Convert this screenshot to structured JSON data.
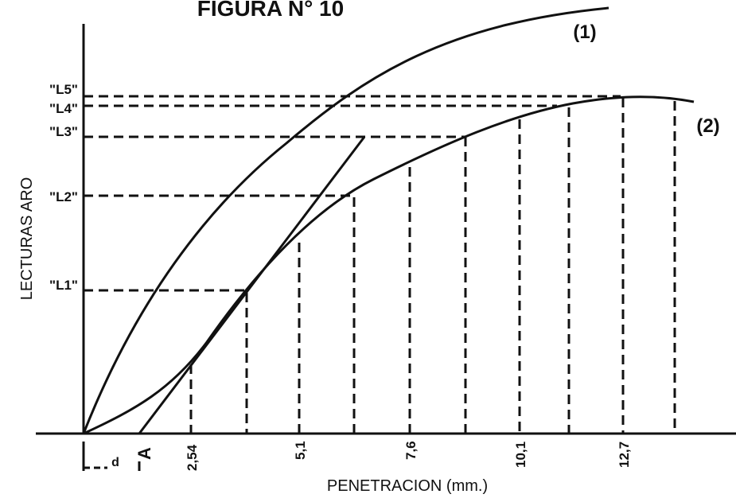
{
  "title": "FIGURA N° 10",
  "curves": [
    "(1)",
    "(2)"
  ],
  "readings": [
    "\"L5\"",
    "\"L4\"",
    "\"L3\"",
    "\"L2\"",
    "\"L1\""
  ],
  "y_axis_label": "LECTURAS ARO",
  "x_axis_label": "PENETRACION (mm.)",
  "x_tick_labels": [
    "2,54",
    "5,1",
    "7,6",
    "10,1",
    "12,7"
  ],
  "origin_labels": {
    "offset": "d",
    "point": "A"
  }
}
